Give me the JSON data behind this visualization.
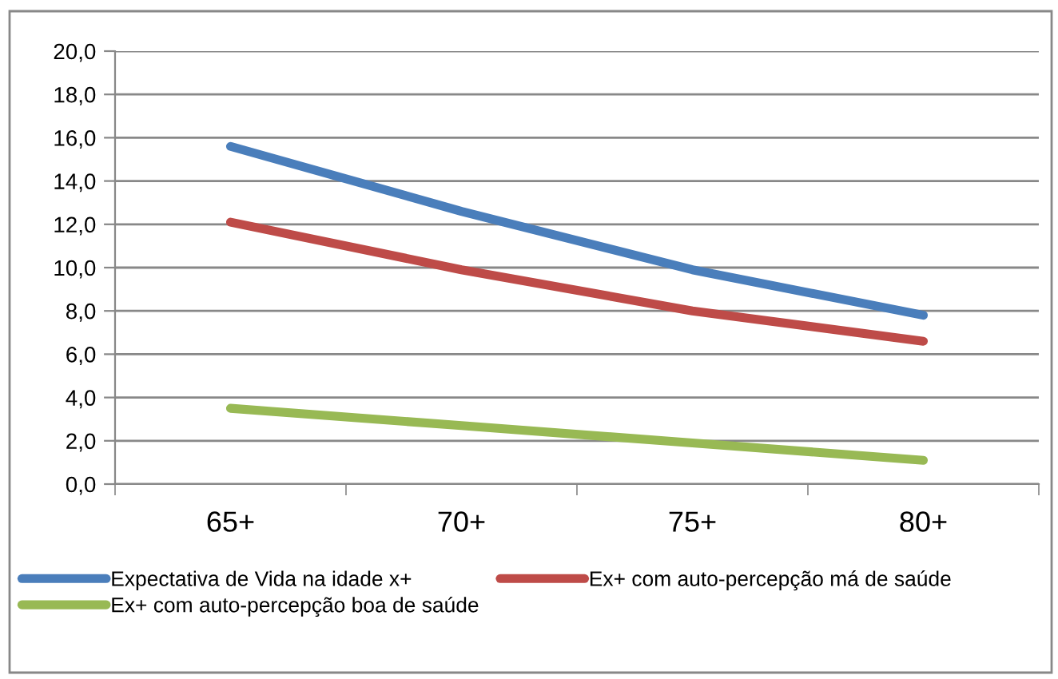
{
  "chart_data": {
    "type": "line",
    "categories": [
      "65+",
      "70+",
      "75+",
      "80+"
    ],
    "series": [
      {
        "name": "Expectativa de Vida na idade x+",
        "color": "#4a7ebb",
        "values": [
          15.6,
          12.6,
          9.9,
          7.8
        ]
      },
      {
        "name": "Ex+ com auto-percepção má de saúde",
        "color": "#be4b48",
        "values": [
          12.1,
          9.9,
          8.0,
          6.6
        ]
      },
      {
        "name": "Ex+ com auto-percepção boa de saúde",
        "color": "#98b954",
        "values": [
          3.5,
          2.7,
          1.9,
          1.1
        ]
      }
    ],
    "ylim": [
      0,
      20
    ],
    "yticks": [
      {
        "value": 0,
        "label": "0,0"
      },
      {
        "value": 2,
        "label": "2,0"
      },
      {
        "value": 4,
        "label": "4,0"
      },
      {
        "value": 6,
        "label": "6,0"
      },
      {
        "value": 8,
        "label": "8,0"
      },
      {
        "value": 10,
        "label": "10,0"
      },
      {
        "value": 12,
        "label": "12,0"
      },
      {
        "value": 14,
        "label": "14,0"
      },
      {
        "value": 16,
        "label": "16,0"
      },
      {
        "value": 18,
        "label": "18,0"
      },
      {
        "value": 20,
        "label": "20,0"
      }
    ],
    "grid": "y",
    "legend": "bottom",
    "marker": "none",
    "line_style": "solid"
  }
}
